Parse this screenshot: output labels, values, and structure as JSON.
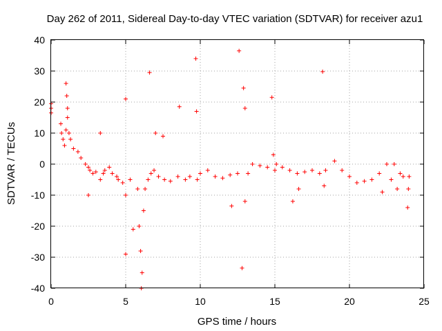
{
  "chart_data": {
    "type": "scatter",
    "title": "Day 262 of 2011, Sidereal Day-to-day VTEC variation (SDTVAR) for receiver azu1",
    "xlabel": "GPS time / hours",
    "ylabel": "SDTVAR / TECUs",
    "xlim": [
      0,
      25
    ],
    "ylim": [
      -40,
      40
    ],
    "x_ticks": [
      0,
      5,
      10,
      15,
      20,
      25
    ],
    "y_ticks": [
      -40,
      -30,
      -20,
      -10,
      0,
      10,
      20,
      30,
      40
    ],
    "grid": true,
    "marker": "plus",
    "color": "#ff0000",
    "series": [
      {
        "name": "SDTVAR",
        "x": [
          0.0,
          0.0,
          0.0,
          0.65,
          0.7,
          0.8,
          0.9,
          1.0,
          1.0,
          1.05,
          1.1,
          1.1,
          1.2,
          1.3,
          1.5,
          1.8,
          2.0,
          2.3,
          2.5,
          2.5,
          2.6,
          2.8,
          3.0,
          3.3,
          3.3,
          3.5,
          3.6,
          3.9,
          4.1,
          4.4,
          4.5,
          4.8,
          5.0,
          5.0,
          5.0,
          5.3,
          5.5,
          5.8,
          5.9,
          6.0,
          6.05,
          6.1,
          6.2,
          6.3,
          6.5,
          6.6,
          6.7,
          6.9,
          7.0,
          7.2,
          7.5,
          7.6,
          8.0,
          8.5,
          8.6,
          9.0,
          9.3,
          9.7,
          9.75,
          9.8,
          10.0,
          10.5,
          11.0,
          11.5,
          12.0,
          12.1,
          12.5,
          12.6,
          12.8,
          12.9,
          13.0,
          13.0,
          13.2,
          13.5,
          14.0,
          14.5,
          14.8,
          14.9,
          15.0,
          15.1,
          15.5,
          16.0,
          16.2,
          16.5,
          16.6,
          17.0,
          17.5,
          18.0,
          18.2,
          18.3,
          18.4,
          19.0,
          19.5,
          20.0,
          20.5,
          21.0,
          21.5,
          22.0,
          22.2,
          22.5,
          22.8,
          23.0,
          23.2,
          23.4,
          23.6,
          23.9,
          23.95,
          24.0
        ],
        "y": [
          16.5,
          18.0,
          19.5,
          13.0,
          10.0,
          8.0,
          6.0,
          11.0,
          26.0,
          22.0,
          18.0,
          15.0,
          10.0,
          8.0,
          5.0,
          4.0,
          2.0,
          0.0,
          -1.0,
          -10.0,
          -2.0,
          -3.0,
          -2.5,
          10.0,
          -5.0,
          -3.0,
          -2.0,
          -1.0,
          -3.0,
          -4.0,
          -5.0,
          -6.0,
          21.0,
          -29.0,
          -10.0,
          -5.0,
          -21.0,
          -8.0,
          -20.0,
          -28.0,
          -40.0,
          -35.0,
          -15.0,
          -8.0,
          -5.0,
          29.5,
          -3.0,
          -2.0,
          10.0,
          -4.0,
          9.0,
          -5.0,
          -5.5,
          -4.0,
          18.5,
          -5.0,
          -4.0,
          34.0,
          17.0,
          -5.0,
          -3.0,
          -2.0,
          -4.0,
          -4.5,
          -3.5,
          -13.5,
          -3.0,
          36.5,
          -33.5,
          24.5,
          18.0,
          -12.0,
          -3.0,
          0.0,
          -0.5,
          -1.0,
          21.5,
          3.0,
          -2.0,
          0.0,
          -1.0,
          -2.0,
          -12.0,
          -3.0,
          -8.0,
          -2.5,
          -2.0,
          -3.0,
          29.8,
          -7.0,
          -2.0,
          1.0,
          -2.0,
          -4.0,
          -6.0,
          -5.5,
          -5.0,
          -3.0,
          -9.0,
          0.0,
          -5.0,
          0.0,
          -8.0,
          -3.0,
          -4.0,
          -14.0,
          -8.0,
          -4.0
        ]
      }
    ]
  }
}
